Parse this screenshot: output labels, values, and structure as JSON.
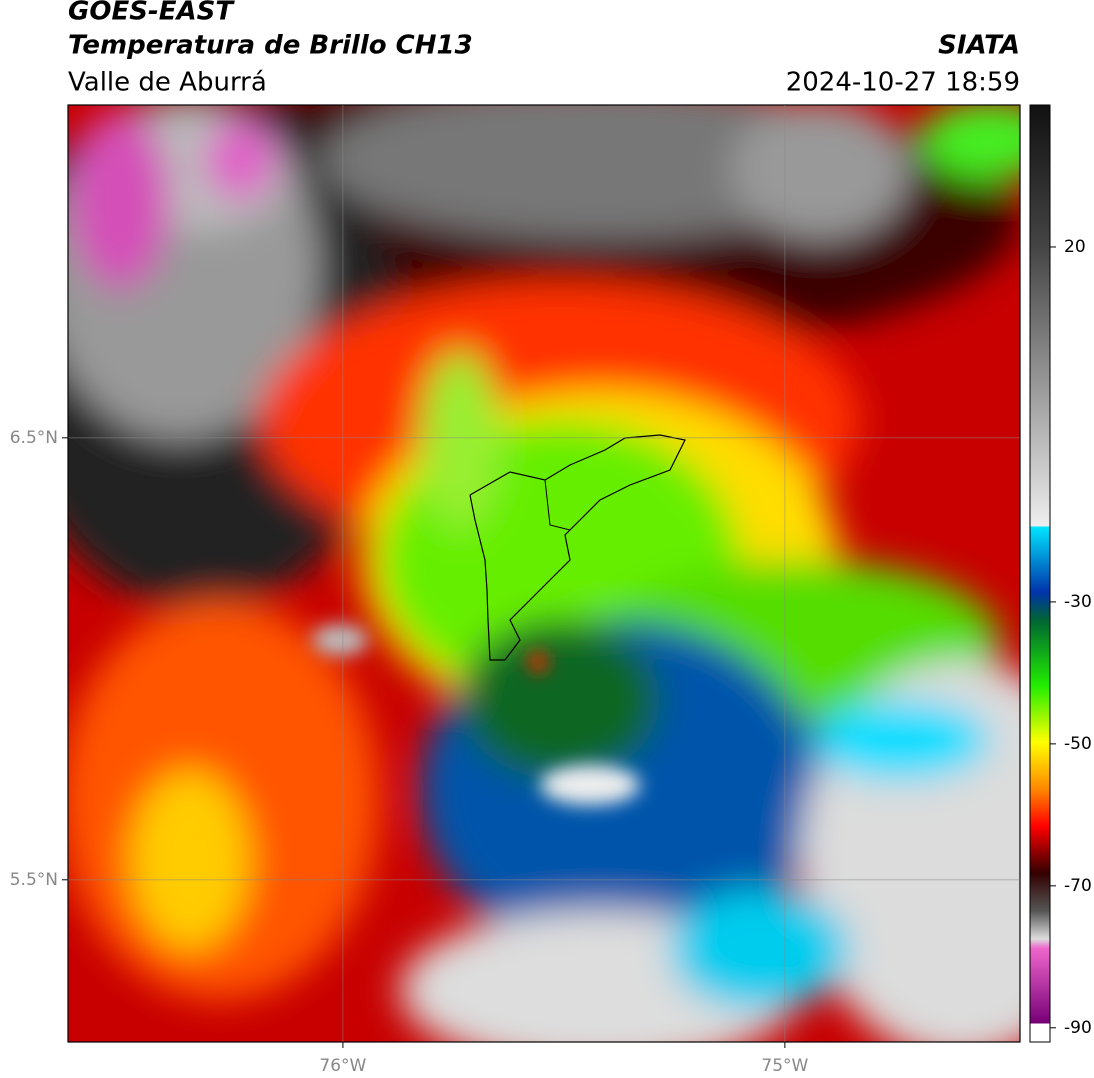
{
  "header": {
    "title": "GOES-EAST",
    "subtitle": "Temperatura de Brillo CH13",
    "region": "Valle de Aburrá",
    "source": "SIATA",
    "datetime": "2024-10-27 18:59"
  },
  "map": {
    "lonlim": [
      -76.622,
      -74.468
    ],
    "latlim": [
      5.133,
      7.253
    ],
    "lat_ticks": [
      {
        "value": 6.5,
        "label": "6.5°N"
      },
      {
        "value": 5.5,
        "label": "5.5°N"
      }
    ],
    "lon_ticks": [
      {
        "value": -76,
        "label": "76°W"
      },
      {
        "value": -75,
        "label": "75°W"
      }
    ]
  },
  "colorbar": {
    "range": [
      -92,
      40
    ],
    "ticks": [
      20,
      -30,
      -50,
      -70,
      -90
    ]
  }
}
